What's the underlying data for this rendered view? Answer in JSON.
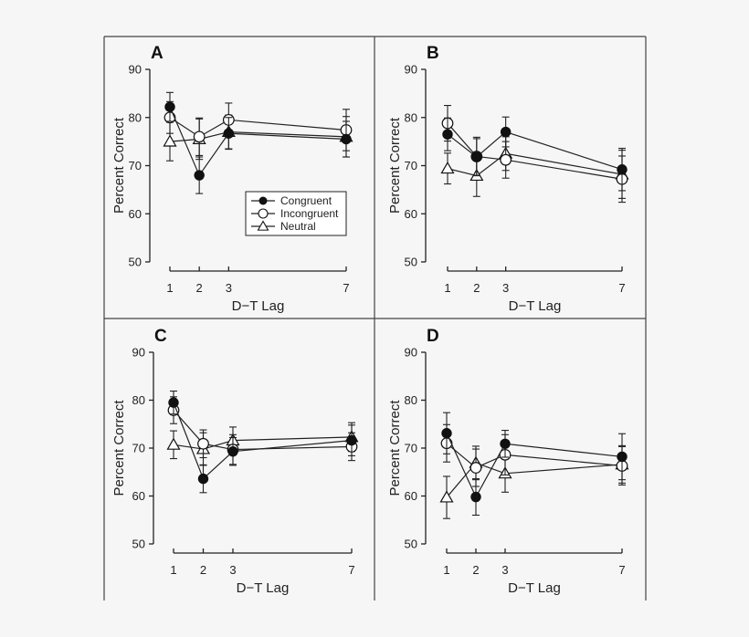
{
  "chart_data": [
    {
      "type": "line",
      "panel_label": "A",
      "xlabel": "D−T Lag",
      "ylabel": "Percent Correct",
      "x": [
        1,
        2,
        3,
        7
      ],
      "xticks": [
        "1",
        "2",
        "3",
        "7"
      ],
      "yticks": [
        "50",
        "60",
        "70",
        "80",
        "90"
      ],
      "ylim": [
        50,
        90
      ],
      "legend": "center-right",
      "series": [
        {
          "name": "Congruent",
          "marker": "filled-circle",
          "values": [
            82.2,
            68.0,
            76.7,
            75.5
          ],
          "errors": [
            3.0,
            3.8,
            3.3,
            3.7
          ]
        },
        {
          "name": "Incongruent",
          "marker": "open-circle",
          "values": [
            80.0,
            76.0,
            79.5,
            77.4
          ],
          "errors": [
            3.3,
            3.9,
            3.5,
            4.3
          ]
        },
        {
          "name": "Neutral",
          "marker": "open-triangle",
          "values": [
            75.0,
            75.5,
            77.0,
            76.0
          ],
          "errors": [
            4.0,
            4.2,
            3.5,
            4.2
          ]
        }
      ]
    },
    {
      "type": "line",
      "panel_label": "B",
      "xlabel": "D−T Lag",
      "ylabel": "Percent Correct",
      "x": [
        1,
        2,
        3,
        7
      ],
      "xticks": [
        "1",
        "2",
        "3",
        "7"
      ],
      "yticks": [
        "50",
        "60",
        "70",
        "80",
        "90"
      ],
      "ylim": [
        50,
        90
      ],
      "legend": "none",
      "series": [
        {
          "name": "Congruent",
          "marker": "filled-circle",
          "values": [
            76.5,
            71.8,
            77.0,
            69.2
          ],
          "errors": [
            3.4,
            3.8,
            3.1,
            4.4
          ]
        },
        {
          "name": "Incongruent",
          "marker": "open-circle",
          "values": [
            78.8,
            71.9,
            71.2,
            67.2
          ],
          "errors": [
            3.7,
            4.0,
            3.8,
            4.8
          ]
        },
        {
          "name": "Neutral",
          "marker": "open-triangle",
          "values": [
            69.4,
            67.9,
            72.5,
            68.2
          ],
          "errors": [
            3.2,
            4.3,
            3.5,
            5.0
          ]
        }
      ]
    },
    {
      "type": "line",
      "panel_label": "C",
      "xlabel": "D−T Lag",
      "ylabel": "Percent Correct",
      "x": [
        1,
        2,
        3,
        7
      ],
      "xticks": [
        "1",
        "2",
        "3",
        "7"
      ],
      "yticks": [
        "50",
        "60",
        "70",
        "80",
        "90"
      ],
      "ylim": [
        50,
        90
      ],
      "legend": "none",
      "series": [
        {
          "name": "Congruent",
          "marker": "filled-circle",
          "values": [
            79.5,
            63.6,
            69.3,
            71.6
          ],
          "errors": [
            2.4,
            2.9,
            2.9,
            3.2
          ]
        },
        {
          "name": "Incongruent",
          "marker": "open-circle",
          "values": [
            77.9,
            70.9,
            69.7,
            70.3
          ],
          "errors": [
            2.8,
            2.9,
            3.1,
            2.9
          ]
        },
        {
          "name": "Neutral",
          "marker": "open-triangle",
          "values": [
            70.7,
            69.8,
            71.6,
            72.3
          ],
          "errors": [
            2.9,
            3.4,
            2.8,
            3.0
          ]
        }
      ]
    },
    {
      "type": "line",
      "panel_label": "D",
      "xlabel": "D−T Lag",
      "ylabel": "Percent Correct",
      "x": [
        1,
        2,
        3,
        7
      ],
      "xticks": [
        "1",
        "2",
        "3",
        "7"
      ],
      "yticks": [
        "50",
        "60",
        "70",
        "80",
        "90"
      ],
      "ylim": [
        50,
        90
      ],
      "legend": "none",
      "series": [
        {
          "name": "Congruent",
          "marker": "filled-circle",
          "values": [
            73.1,
            59.8,
            70.9,
            68.2
          ],
          "errors": [
            4.3,
            3.8,
            2.8,
            4.8
          ]
        },
        {
          "name": "Incongruent",
          "marker": "open-circle",
          "values": [
            71.0,
            65.9,
            68.6,
            66.3
          ],
          "errors": [
            3.9,
            3.9,
            4.2,
            4.0
          ]
        },
        {
          "name": "Neutral",
          "marker": "open-triangle",
          "values": [
            59.7,
            66.9,
            64.7,
            66.6
          ],
          "errors": [
            4.4,
            3.5,
            3.9,
            3.9
          ]
        }
      ]
    }
  ]
}
